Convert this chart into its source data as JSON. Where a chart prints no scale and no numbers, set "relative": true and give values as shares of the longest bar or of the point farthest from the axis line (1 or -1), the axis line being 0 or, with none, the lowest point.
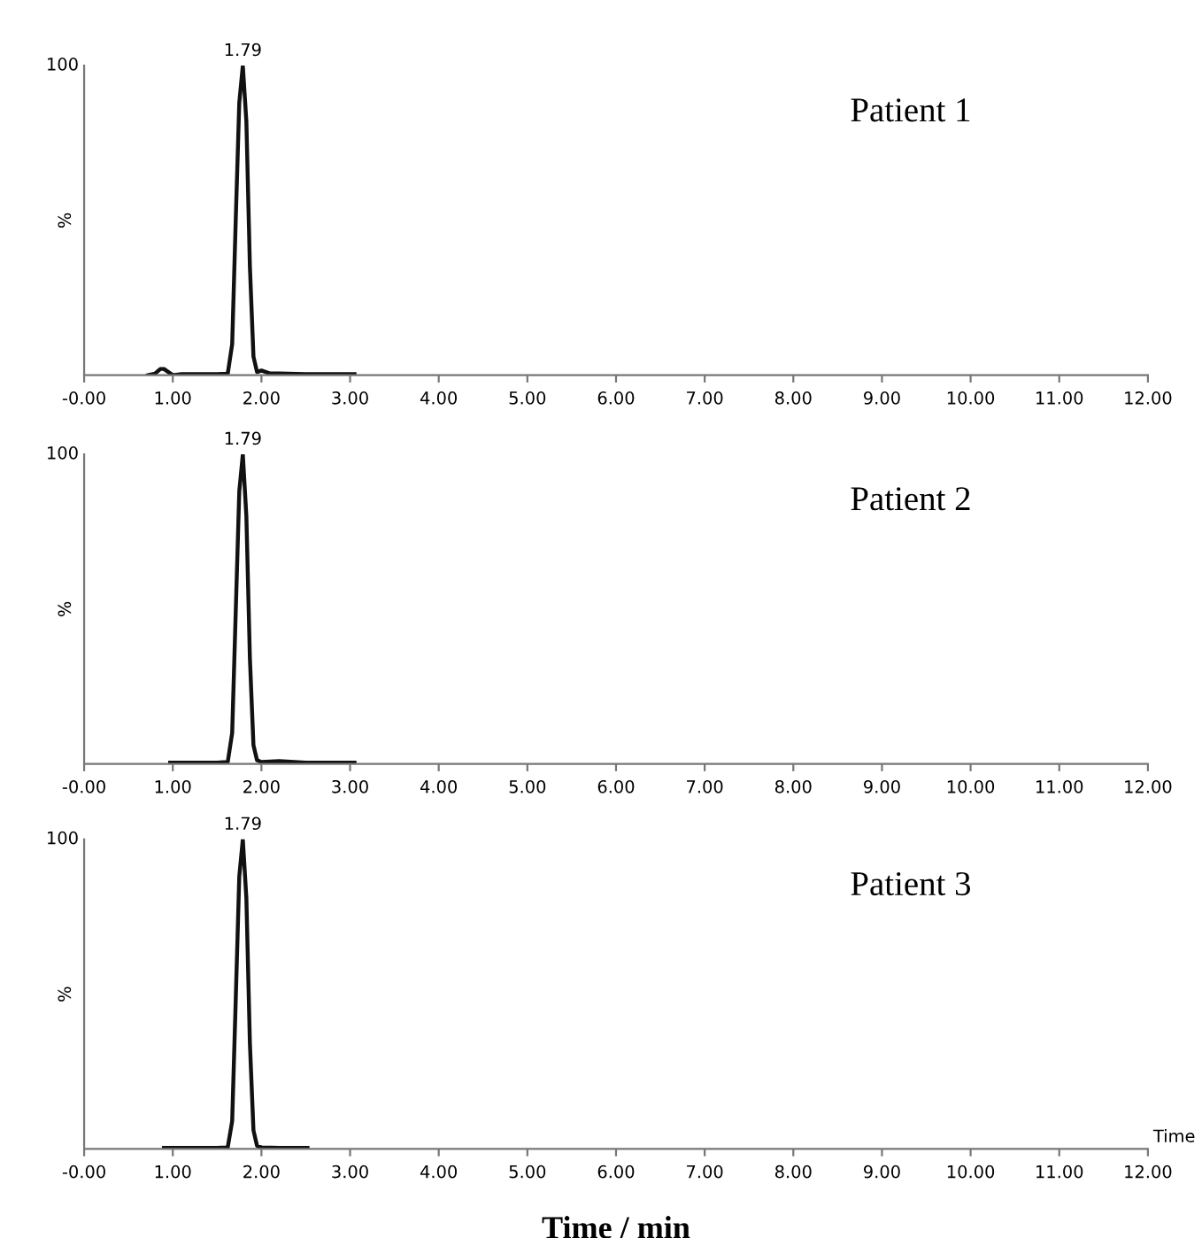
{
  "chart_data": [
    {
      "type": "line",
      "ylabel": "%",
      "relative": true,
      "x": [
        0.72,
        0.8,
        0.86,
        0.9,
        0.95,
        1.0,
        1.1,
        1.3,
        1.5,
        1.62,
        1.67,
        1.71,
        1.75,
        1.79,
        1.83,
        1.87,
        1.91,
        1.95,
        2.0,
        2.05,
        2.1,
        2.2,
        2.5,
        2.8,
        3.05
      ],
      "series": [
        {
          "color": "#111111",
          "values": [
            0,
            0.005,
            0.02,
            0.02,
            0.01,
            0,
            0.003,
            0.003,
            0.003,
            0.005,
            0.1,
            0.5,
            0.88,
            1,
            0.82,
            0.35,
            0.06,
            0.01,
            0.015,
            0.01,
            0.005,
            0.005,
            0.003,
            0.003,
            0.003
          ]
        }
      ],
      "xlim": [
        0,
        12
      ],
      "xticks": [
        {
          "value": 0,
          "label": "-0.00"
        },
        {
          "value": 1,
          "label": "1.00"
        },
        {
          "value": 2,
          "label": "2.00"
        },
        {
          "value": 3,
          "label": "3.00"
        },
        {
          "value": 4,
          "label": "4.00"
        },
        {
          "value": 5,
          "label": "5.00"
        },
        {
          "value": 6,
          "label": "6.00"
        },
        {
          "value": 7,
          "label": "7.00"
        },
        {
          "value": 8,
          "label": "8.00"
        },
        {
          "value": 9,
          "label": "9.00"
        },
        {
          "value": 10,
          "label": "10.00"
        },
        {
          "value": 11,
          "label": "11.00"
        },
        {
          "value": 12,
          "label": "12.00"
        }
      ],
      "grid": false,
      "legend": false,
      "annotations": [
        "1.79",
        "100",
        "Patient 1"
      ]
    },
    {
      "type": "line",
      "ylabel": "%",
      "relative": true,
      "x": [
        0.97,
        1.2,
        1.5,
        1.62,
        1.67,
        1.71,
        1.75,
        1.79,
        1.83,
        1.87,
        1.91,
        1.95,
        2.0,
        2.2,
        2.5,
        2.8,
        3.05
      ],
      "series": [
        {
          "color": "#111111",
          "values": [
            0.004,
            0.004,
            0.004,
            0.006,
            0.1,
            0.49,
            0.88,
            1,
            0.8,
            0.34,
            0.06,
            0.012,
            0.006,
            0.009,
            0.004,
            0.004,
            0.004
          ]
        }
      ],
      "xlim": [
        0,
        12
      ],
      "xticks": [
        {
          "value": 0,
          "label": "-0.00"
        },
        {
          "value": 1,
          "label": "1.00"
        },
        {
          "value": 2,
          "label": "2.00"
        },
        {
          "value": 3,
          "label": "3.00"
        },
        {
          "value": 4,
          "label": "4.00"
        },
        {
          "value": 5,
          "label": "5.00"
        },
        {
          "value": 6,
          "label": "6.00"
        },
        {
          "value": 7,
          "label": "7.00"
        },
        {
          "value": 8,
          "label": "8.00"
        },
        {
          "value": 9,
          "label": "9.00"
        },
        {
          "value": 10,
          "label": "10.00"
        },
        {
          "value": 11,
          "label": "11.00"
        },
        {
          "value": 12,
          "label": "12.00"
        }
      ],
      "grid": false,
      "legend": false,
      "annotations": [
        "1.79",
        "100",
        "Patient 2"
      ]
    },
    {
      "type": "line",
      "ylabel": "%",
      "xlabel": "Time / min",
      "relative": true,
      "x": [
        0.9,
        1.2,
        1.5,
        1.62,
        1.67,
        1.71,
        1.75,
        1.79,
        1.83,
        1.87,
        1.91,
        1.95,
        2.0,
        2.2,
        2.52
      ],
      "series": [
        {
          "color": "#111111",
          "values": [
            0.003,
            0.003,
            0.003,
            0.005,
            0.09,
            0.48,
            0.88,
            1,
            0.81,
            0.34,
            0.06,
            0.01,
            0.005,
            0.003,
            0.003
          ]
        }
      ],
      "xlim": [
        0,
        12
      ],
      "xticks": [
        {
          "value": 0,
          "label": "-0.00"
        },
        {
          "value": 1,
          "label": "1.00"
        },
        {
          "value": 2,
          "label": "2.00"
        },
        {
          "value": 3,
          "label": "3.00"
        },
        {
          "value": 4,
          "label": "4.00"
        },
        {
          "value": 5,
          "label": "5.00"
        },
        {
          "value": 6,
          "label": "6.00"
        },
        {
          "value": 7,
          "label": "7.00"
        },
        {
          "value": 8,
          "label": "8.00"
        },
        {
          "value": 9,
          "label": "9.00"
        },
        {
          "value": 10,
          "label": "10.00"
        },
        {
          "value": 11,
          "label": "11.00"
        },
        {
          "value": 12,
          "label": "12.00"
        }
      ],
      "grid": false,
      "legend": false,
      "annotations": [
        "1.79",
        "100",
        "Patient 3",
        "Time"
      ]
    }
  ]
}
